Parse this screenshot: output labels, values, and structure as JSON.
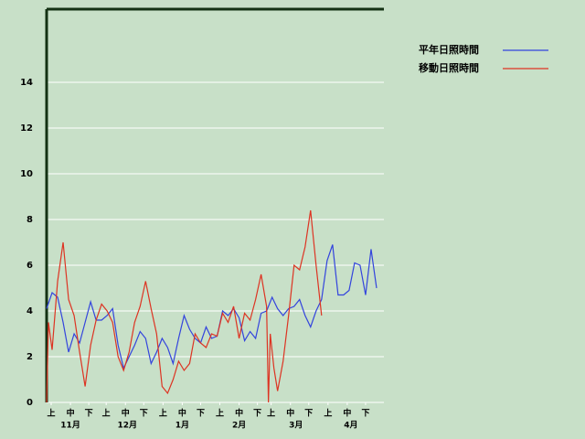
{
  "chart_data": {
    "type": "line",
    "xlim": [
      0,
      184
    ],
    "ylim": [
      0,
      17.2
    ],
    "yticks": [
      0,
      2,
      4,
      6,
      8,
      10,
      12,
      14
    ],
    "grid": true,
    "xticks": [
      {
        "value": 2.5,
        "label": "上"
      },
      {
        "value": 13,
        "label": "中"
      },
      {
        "value": 23,
        "label": "下"
      },
      {
        "value": 32.5,
        "label": "上"
      },
      {
        "value": 43,
        "label": "中"
      },
      {
        "value": 53,
        "label": "下"
      },
      {
        "value": 63.5,
        "label": "上"
      },
      {
        "value": 74,
        "label": "中"
      },
      {
        "value": 84,
        "label": "下"
      },
      {
        "value": 94.5,
        "label": "上"
      },
      {
        "value": 105,
        "label": "中"
      },
      {
        "value": 115,
        "label": "下"
      },
      {
        "value": 122.5,
        "label": "上"
      },
      {
        "value": 133,
        "label": "中"
      },
      {
        "value": 143,
        "label": "下"
      },
      {
        "value": 153.5,
        "label": "上"
      },
      {
        "value": 164,
        "label": "中"
      },
      {
        "value": 174,
        "label": "下"
      }
    ],
    "month_ticks": [
      {
        "value": 13,
        "label": "11月"
      },
      {
        "value": 44,
        "label": "12月"
      },
      {
        "value": 74,
        "label": "1月"
      },
      {
        "value": 105,
        "label": "2月"
      },
      {
        "value": 136,
        "label": "3月"
      },
      {
        "value": 166,
        "label": "4月"
      }
    ],
    "series": [
      {
        "name": "平年日照時間",
        "color": "#3344dd",
        "x": [
          0,
          3,
          6,
          9,
          12,
          15,
          18,
          21,
          24,
          27,
          30,
          33,
          36,
          39,
          42,
          45,
          48,
          51,
          54,
          57,
          60,
          63,
          66,
          69,
          72,
          75,
          78,
          81,
          84,
          87,
          90,
          93,
          96,
          99,
          102,
          105,
          108,
          111,
          114,
          117,
          120,
          123,
          126,
          129,
          132,
          135,
          138,
          141,
          144,
          147,
          150,
          153,
          156,
          159,
          162,
          165,
          168,
          171,
          174,
          177,
          180
        ],
        "values": [
          4.1,
          4.8,
          4.6,
          3.5,
          2.2,
          3.0,
          2.6,
          3.5,
          4.4,
          3.6,
          3.6,
          3.8,
          4.1,
          2.5,
          1.5,
          2.0,
          2.5,
          3.1,
          2.8,
          1.7,
          2.2,
          2.8,
          2.4,
          1.7,
          2.8,
          3.8,
          3.2,
          2.8,
          2.6,
          3.3,
          2.8,
          2.9,
          4.0,
          3.8,
          4.1,
          3.7,
          2.7,
          3.1,
          2.8,
          3.9,
          4.0,
          4.6,
          4.1,
          3.8,
          4.1,
          4.2,
          4.5,
          3.8,
          3.3,
          4.0,
          4.5,
          6.2,
          6.9,
          4.7,
          4.7,
          4.9,
          6.1,
          6.0,
          4.7,
          6.7,
          5.0
        ]
      },
      {
        "name": "移動日照時間",
        "color": "#dd3322",
        "x": [
          0,
          1,
          3,
          6,
          9,
          12,
          15,
          18,
          21,
          24,
          27,
          30,
          33,
          36,
          39,
          42,
          45,
          48,
          51,
          54,
          57,
          60,
          63,
          66,
          69,
          72,
          75,
          78,
          81,
          84,
          87,
          90,
          93,
          96,
          99,
          102,
          105,
          108,
          111,
          114,
          117,
          120,
          121,
          122,
          124,
          126,
          129,
          132,
          135,
          138,
          141,
          144,
          147,
          150
        ],
        "values": [
          0,
          3.5,
          2.3,
          5.3,
          7.0,
          4.5,
          3.8,
          2.2,
          0.7,
          2.5,
          3.6,
          4.3,
          4.0,
          3.5,
          2.0,
          1.4,
          2.2,
          3.5,
          4.2,
          5.3,
          4.1,
          3.0,
          0.7,
          0.4,
          1.0,
          1.8,
          1.4,
          1.7,
          3.0,
          2.6,
          2.4,
          3.0,
          2.9,
          3.9,
          3.5,
          4.2,
          2.8,
          3.9,
          3.6,
          4.5,
          5.6,
          4.2,
          0.0,
          3.0,
          1.5,
          0.5,
          1.8,
          3.8,
          6.0,
          5.8,
          6.8,
          8.4,
          6.0,
          3.8
        ]
      }
    ]
  }
}
